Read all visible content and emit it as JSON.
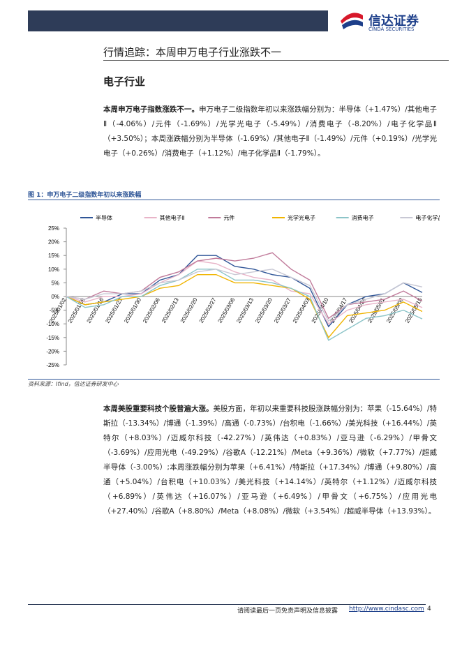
{
  "header": {
    "logo_cn": "信达证券",
    "logo_en": "CINDA SECURITIES"
  },
  "section_title": "行情追踪：本周申万电子行业涨跌不一",
  "subsection_title": "电子行业",
  "paragraphs": [
    {
      "lead": "本周申万电子指数涨跌不一。",
      "text": "申万电子二级指数年初以来涨跌幅分别为：半导体（+1.47%）/其他电子Ⅱ（-4.06%）/元件（-1.69%）/光学光电子（-5.49%）/消费电子（-8.20%）/电子化学品Ⅱ（+3.50%）；本周涨跌幅分别为半导体（-1.69%）/其他电子Ⅱ（-1.49%）/元件（+0.19%）/光学光电子（+0.26%）/消费电子（+1.12%）/电子化学品Ⅱ（-1.79%）。"
    },
    {
      "lead": "本周美股重要科技个股普遍大涨。",
      "text": "美股方面，年初以来重要科技股涨跌幅分别为：苹果（-15.64%）/特斯拉（-13.34%）/博通（-1.39%）/高通（-0.73%）/台积电（-1.66%）/美光科技（+16.44%）/英特尔（+8.03%）/迈威尔科技（-42.27%）/英伟达（+0.83%）/亚马逊（-6.29%）/甲骨文（-3.69%）/应用光电（-49.29%）/谷歌A（-12.21%）/Meta（+9.36%）/微软（+7.77%）/超威半导体（-3.00%）;本周涨跌幅分别为苹果（+6.41%）/特斯拉（+17.34%）/博通（+9.80%）/高通（+5.04%）/台积电（+10.03%）/美光科技（+14.14%）/英特尔（+1.12%）/迈威尔科技（+6.89%）/英伟达（+16.07%）/亚马逊（+6.49%）/甲骨文（+6.75%）/应用光电（+27.40%）/谷歌A（+8.80%）/Meta（+8.08%）/微软（+3.54%）/超威半导体（+13.93%）。"
    }
  ],
  "chart_caption": "图 1：申万电子二级指数年初以来涨跌幅",
  "source": "资料来源：Ifind，信达证券研发中心",
  "footer": {
    "disclaimer": "请阅读最后一页免责声明及信息披露",
    "url": "http://www.cindasc.com",
    "page": "4"
  },
  "chart_data": {
    "type": "line",
    "x": [
      "2025/01/02",
      "2025/01/09",
      "2025/01/16",
      "2025/01/23",
      "2025/01/30",
      "2025/02/06",
      "2025/02/13",
      "2025/02/20",
      "2025/02/27",
      "2025/03/06",
      "2025/03/13",
      "2025/03/20",
      "2025/03/27",
      "2025/04/03",
      "2025/04/10",
      "2025/04/17",
      "2025/04/24",
      "2025/05/01",
      "2025/05/08",
      "2025/05/15"
    ],
    "series": [
      {
        "name": "半导体",
        "color": "#2f5597",
        "values": [
          0,
          -3,
          -2,
          1,
          1,
          6,
          8,
          15,
          15,
          11,
          10,
          8,
          7,
          3,
          -11,
          -3,
          0,
          1,
          5,
          1.47
        ]
      },
      {
        "name": "其他电子Ⅱ",
        "color": "#e8b4c8",
        "values": [
          0,
          -2,
          0,
          0,
          1,
          5,
          8,
          13,
          12,
          9,
          7,
          6,
          2,
          1,
          -10,
          -5,
          -3,
          -2,
          -1,
          -4.06
        ]
      },
      {
        "name": "元件",
        "color": "#c07a9a",
        "values": [
          0,
          -1,
          2,
          1,
          2,
          7,
          9,
          13,
          14,
          13,
          14,
          16,
          10,
          6,
          -8,
          -3,
          -2,
          -1,
          2,
          -1.69
        ]
      },
      {
        "name": "光学光电子",
        "color": "#f0b400",
        "values": [
          0,
          -3,
          -2,
          -1,
          0,
          3,
          4,
          8,
          8,
          5,
          5,
          4,
          3,
          -1,
          -15,
          -7,
          -6,
          -5,
          -2,
          -5.49
        ]
      },
      {
        "name": "消费电子",
        "color": "#8cc4c8",
        "values": [
          0,
          -4,
          -3,
          0,
          0,
          4,
          6,
          10,
          10,
          6,
          6,
          5,
          3,
          0,
          -16,
          -12,
          -8,
          -7,
          -5,
          -8.2
        ]
      },
      {
        "name": "电子化学品Ⅱ",
        "color": "#c8c8d4",
        "values": [
          0,
          -1,
          1,
          1,
          2,
          5,
          6,
          9,
          10,
          8,
          9,
          10,
          7,
          4,
          -9,
          -3,
          -1,
          1,
          5,
          3.5
        ]
      }
    ],
    "ylim": [
      -25,
      25
    ],
    "yticks": [
      {
        "value": 25,
        "label": "25%"
      },
      {
        "value": 20,
        "label": "20%"
      },
      {
        "value": 15,
        "label": "15%"
      },
      {
        "value": 10,
        "label": "10%"
      },
      {
        "value": 5,
        "label": "5%"
      },
      {
        "value": 0,
        "label": "0%"
      },
      {
        "value": -5,
        "label": "-5%"
      },
      {
        "value": -10,
        "label": "-10%"
      },
      {
        "value": -15,
        "label": "-15%"
      },
      {
        "value": -20,
        "label": "-20%"
      },
      {
        "value": -25,
        "label": "-25%"
      }
    ]
  }
}
